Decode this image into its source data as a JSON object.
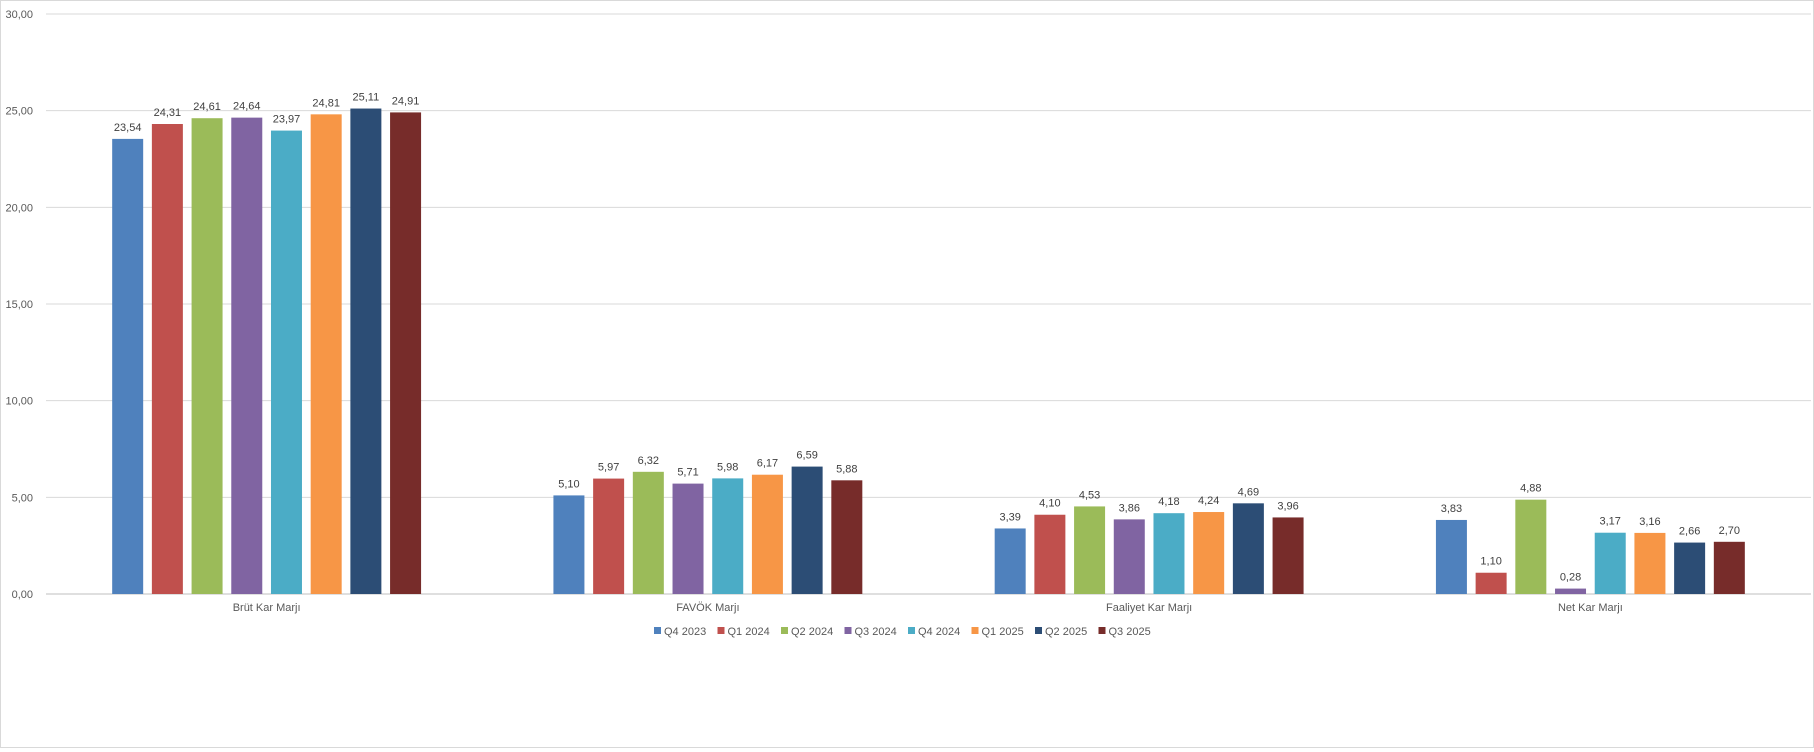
{
  "chart_data": {
    "type": "bar",
    "title": "",
    "xlabel": "",
    "ylabel": "",
    "ylim": [
      0,
      30
    ],
    "yticks": [
      "0,00",
      "5,00",
      "10,00",
      "15,00",
      "20,00",
      "25,00",
      "30,00"
    ],
    "ytick_values": [
      0,
      5,
      10,
      15,
      20,
      25,
      30
    ],
    "grid": true,
    "legend_position": "bottom",
    "categories": [
      "Brüt Kar Marjı",
      "FAVÖK Marjı",
      "Faaliyet Kar Marjı",
      "Net Kar Marjı"
    ],
    "series": [
      {
        "name": "Q4 2023",
        "color": "#4f81bd",
        "values": [
          23.54,
          5.1,
          3.39,
          3.83
        ],
        "labels": [
          "23,54",
          "5,10",
          "3,39",
          "3,83"
        ]
      },
      {
        "name": "Q1 2024",
        "color": "#c0504d",
        "values": [
          24.31,
          5.97,
          4.1,
          1.1
        ],
        "labels": [
          "24,31",
          "5,97",
          "4,10",
          "1,10"
        ]
      },
      {
        "name": "Q2 2024",
        "color": "#9bbb59",
        "values": [
          24.61,
          6.32,
          4.53,
          4.88
        ],
        "labels": [
          "24,61",
          "6,32",
          "4,53",
          "4,88"
        ]
      },
      {
        "name": "Q3 2024",
        "color": "#8064a2",
        "values": [
          24.64,
          5.71,
          3.86,
          0.28
        ],
        "labels": [
          "24,64",
          "5,71",
          "3,86",
          "0,28"
        ]
      },
      {
        "name": "Q4 2024",
        "color": "#4bacc6",
        "values": [
          23.97,
          5.98,
          4.18,
          3.17
        ],
        "labels": [
          "23,97",
          "5,98",
          "4,18",
          "3,17"
        ]
      },
      {
        "name": "Q1 2025",
        "color": "#f79646",
        "values": [
          24.81,
          6.17,
          4.24,
          3.16
        ],
        "labels": [
          "24,81",
          "6,17",
          "4,24",
          "3,16"
        ]
      },
      {
        "name": "Q2 2025",
        "color": "#2c4d75",
        "values": [
          25.11,
          6.59,
          4.69,
          2.66
        ],
        "labels": [
          "25,11",
          "6,59",
          "4,69",
          "2,66"
        ]
      },
      {
        "name": "Q3 2025",
        "color": "#772c2a",
        "values": [
          24.91,
          5.88,
          3.96,
          2.7
        ],
        "labels": [
          "24,91",
          "5,88",
          "3,96",
          "2,70"
        ]
      }
    ]
  }
}
